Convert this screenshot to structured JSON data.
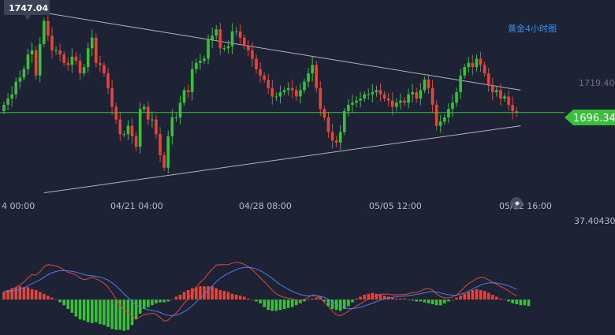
{
  "title": "黄金4小时图",
  "high_label": "1747.04",
  "colors": {
    "background": "#1d2334",
    "up": "#3bbf3b",
    "down": "#e0473c",
    "trendline": "#b0b4bd",
    "price_line": "#3bbf3b",
    "dif": "#e0473c",
    "dea": "#4a7ee8"
  },
  "chart_data": [
    {
      "type": "candlestick",
      "title": "黄金4小时图",
      "ylim": [
        1656,
        1750
      ],
      "x_ticks": [
        "4 00:00",
        "04/21 04:00",
        "04/28 08:00",
        "05/05 12:00",
        "05/12 16:00"
      ],
      "y_tick_labels": [
        "1719.40"
      ],
      "last_price": 1696.34,
      "annotations": [
        {
          "label": "1747.04",
          "value": 1747.04
        }
      ],
      "trendlines": [
        {
          "name": "upper",
          "from": [
            0,
            1747.04
          ],
          "to": [
            129,
            1707
          ]
        },
        {
          "name": "lower",
          "from": [
            10,
            1658
          ],
          "to": [
            129,
            1690
          ]
        }
      ],
      "closes": [
        1700,
        1703,
        1705,
        1711,
        1713,
        1717,
        1724,
        1726,
        1714,
        1729,
        1740,
        1733,
        1726,
        1726,
        1724,
        1720,
        1719,
        1723,
        1721,
        1715,
        1718,
        1727,
        1732,
        1720,
        1719,
        1715,
        1708,
        1699,
        1693,
        1686,
        1686,
        1690,
        1685,
        1680,
        1698,
        1699,
        1693,
        1693,
        1686,
        1676,
        1670,
        1685,
        1694,
        1694,
        1701,
        1707,
        1706,
        1717,
        1720,
        1721,
        1722,
        1731,
        1733,
        1736,
        1727,
        1727,
        1728,
        1735,
        1735,
        1732,
        1728,
        1726,
        1722,
        1717,
        1714,
        1712,
        1708,
        1704,
        1704,
        1706,
        1707,
        1708,
        1707,
        1704,
        1707,
        1711,
        1715,
        1719,
        1708,
        1698,
        1694,
        1687,
        1683,
        1682,
        1687,
        1697,
        1700,
        1701,
        1702,
        1703,
        1705,
        1705,
        1706,
        1707,
        1705,
        1703,
        1702,
        1699,
        1701,
        1702,
        1701,
        1705,
        1706,
        1703,
        1707,
        1712,
        1708,
        1700,
        1690,
        1692,
        1694,
        1698,
        1701,
        1706,
        1714,
        1718,
        1720,
        1718,
        1722,
        1719,
        1715,
        1709,
        1706,
        1707,
        1703,
        1704,
        1700,
        1697,
        1696.34
      ],
      "macd": {
        "label": "37.40430",
        "histogram": [
          8,
          10,
          12,
          13,
          14,
          13,
          13,
          11,
          10,
          8,
          6,
          4,
          2,
          0,
          -3,
          -6,
          -10,
          -14,
          -18,
          -21,
          -22,
          -24,
          -25,
          -24,
          -26,
          -27,
          -29,
          -31,
          -32,
          -32,
          -33,
          -32,
          -27,
          -21,
          -15,
          -10,
          -8,
          -6,
          -4,
          -3,
          -3,
          -2,
          0,
          3,
          5,
          8,
          10,
          12,
          13,
          14,
          14,
          14,
          14,
          12,
          10,
          9,
          8,
          6,
          5,
          4,
          3,
          1,
          0,
          -2,
          -4,
          -8,
          -11,
          -12,
          -12,
          -11,
          -10,
          -9,
          -8,
          -6,
          -4,
          -2,
          0,
          1,
          2,
          3,
          -2,
          -7,
          -10,
          -11,
          -12,
          -10,
          -7,
          -3,
          1,
          3,
          5,
          6,
          7,
          6,
          5,
          4,
          3,
          2,
          1,
          1,
          1,
          0,
          -1,
          -2,
          -2,
          -3,
          -4,
          -5,
          -6,
          -6,
          -4,
          -2,
          0,
          2,
          4,
          6,
          8,
          10,
          11,
          10,
          9,
          7,
          5,
          3,
          1,
          0,
          -2,
          -4,
          -5,
          -6,
          -6,
          -7
        ]
      }
    }
  ]
}
